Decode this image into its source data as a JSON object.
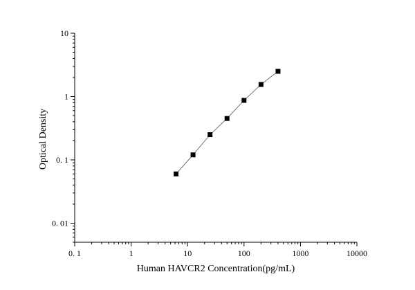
{
  "chart_data": {
    "type": "scatter",
    "xlabel": "Human HAVCR2 Concentration(pg/mL)",
    "ylabel": "Optical Density",
    "x_scale": "log",
    "y_scale": "log",
    "xlim": [
      0.1,
      10000
    ],
    "ylim": [
      0.005,
      10
    ],
    "x_ticks": [
      {
        "value": 0.1,
        "label": "0. 1"
      },
      {
        "value": 1,
        "label": "1"
      },
      {
        "value": 10,
        "label": "10"
      },
      {
        "value": 100,
        "label": "100"
      },
      {
        "value": 1000,
        "label": "1000"
      },
      {
        "value": 10000,
        "label": "10000"
      }
    ],
    "y_ticks": [
      {
        "value": 0.01,
        "label": "0. 01"
      },
      {
        "value": 0.1,
        "label": "0. 1"
      },
      {
        "value": 1,
        "label": "1"
      },
      {
        "value": 10,
        "label": "10"
      }
    ],
    "grid": false,
    "series": [
      {
        "marker": "square",
        "color": "#000000",
        "line_color": "#555555",
        "x": [
          6.25,
          12.5,
          25,
          50,
          100,
          200,
          400
        ],
        "y": [
          0.06,
          0.12,
          0.25,
          0.45,
          0.87,
          1.55,
          2.5
        ]
      }
    ]
  }
}
